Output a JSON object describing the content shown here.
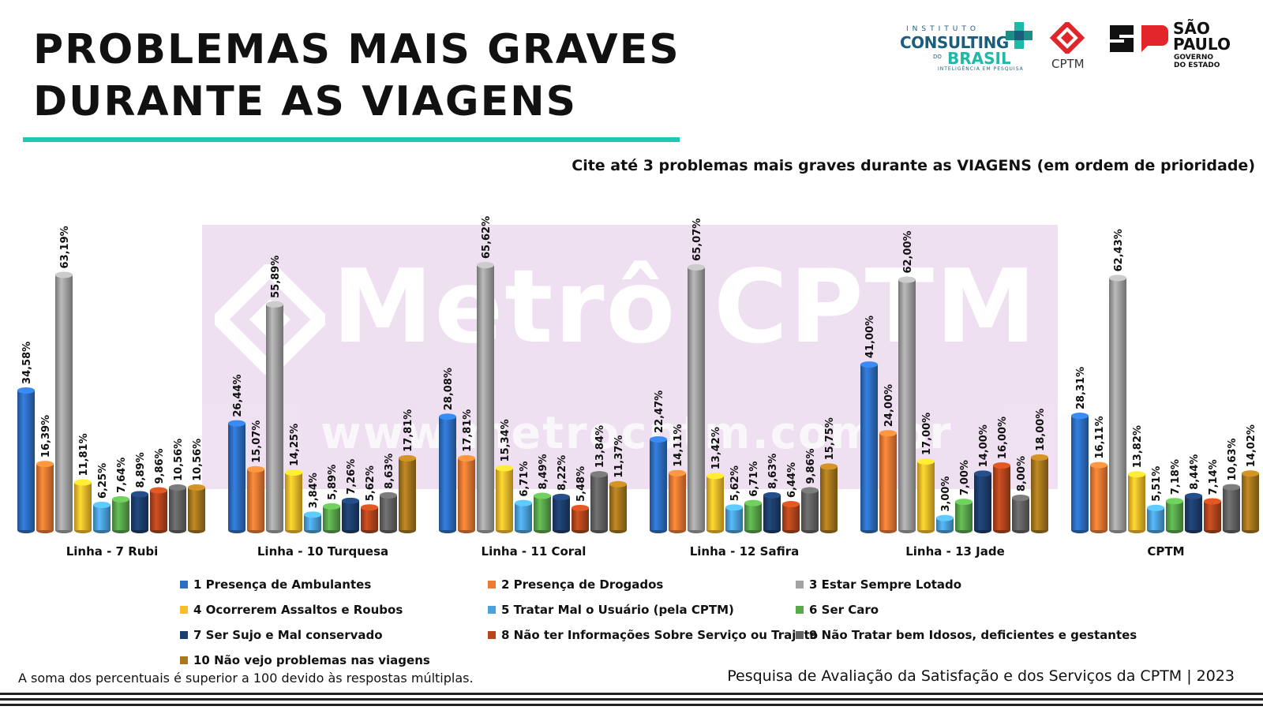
{
  "header": {
    "title_line1": "PROBLEMAS MAIS GRAVES",
    "title_line2": "DURANTE AS VIAGENS",
    "accent_color": "#1fc7b4"
  },
  "logos": {
    "icb_small": "INSTITUTO",
    "icb_big": "CONSULTING",
    "icb_do": "DO",
    "icb_mid": "BRASIL",
    "icb_tag": "INTELIGÊNCIA EM PESQUISA",
    "cptm": "CPTM",
    "sp_line1": "SÃO",
    "sp_line2": "PAULO",
    "sp_line3": "GOVERNO DO ESTADO"
  },
  "watermark": {
    "text": "Metrô CPTM",
    "url": "www.metrocptm.com.br"
  },
  "question": "Cite até 3 problemas mais graves durante as VIAGENS (em ordem de prioridade)",
  "chart_data": {
    "type": "bar",
    "categories": [
      "Linha - 7 Rubi",
      "Linha - 10 Turquesa",
      "Linha - 11 Coral",
      "Linha - 12 Safira",
      "Linha - 13 Jade",
      "CPTM"
    ],
    "ylim": [
      0,
      70
    ],
    "series": [
      {
        "name": "1 Presença de Ambulantes",
        "color": "#2e6fc4",
        "values": [
          34.58,
          26.44,
          28.08,
          22.47,
          41.0,
          28.31
        ],
        "labels": [
          "34,58%",
          "26,44%",
          "28,08%",
          "22,47%",
          "41,00%",
          "28,31%"
        ]
      },
      {
        "name": "2 Presença de Drogados",
        "color": "#ee7a33",
        "values": [
          16.39,
          15.07,
          17.81,
          14.11,
          24.0,
          16.11
        ],
        "labels": [
          "16,39%",
          "15,07%",
          "17,81%",
          "14,11%",
          "24,00%",
          "16,11%"
        ]
      },
      {
        "name": "3 Estar Sempre Lotado",
        "color": "#a3a3a3",
        "values": [
          63.19,
          55.89,
          65.62,
          65.07,
          62.0,
          62.43
        ],
        "labels": [
          "63,19%",
          "55,89%",
          "65,62%",
          "65,07%",
          "62,00%",
          "62,43%"
        ]
      },
      {
        "name": "4 Ocorrerem Assaltos e Roubos",
        "color": "#f8be2a",
        "values": [
          11.81,
          14.25,
          15.34,
          13.42,
          17.0,
          13.82
        ],
        "labels": [
          "11,81%",
          "14,25%",
          "15,34%",
          "13,42%",
          "17,00%",
          "13,82%"
        ]
      },
      {
        "name": "5 Tratar Mal o Usuário (pela CPTM)",
        "color": "#4ca3dc",
        "values": [
          6.25,
          3.84,
          6.71,
          5.62,
          3.0,
          5.51
        ],
        "labels": [
          "6,25%",
          "3,84%",
          "6,71%",
          "5,62%",
          "3,00%",
          "5,51%"
        ]
      },
      {
        "name": "6 Ser Caro",
        "color": "#5aa84c",
        "values": [
          7.64,
          5.89,
          8.49,
          6.71,
          7.0,
          7.18
        ],
        "labels": [
          "7,64%",
          "5,89%",
          "8,49%",
          "6,71%",
          "7,00%",
          "7,18%"
        ]
      },
      {
        "name": "7 Ser Sujo e Mal conservado",
        "color": "#1d3f6e",
        "values": [
          8.89,
          7.26,
          8.22,
          8.63,
          14.0,
          8.44
        ],
        "labels": [
          "8,89%",
          "7,26%",
          "8,22%",
          "8,63%",
          "14,00%",
          "8,44%"
        ]
      },
      {
        "name": "8 Não ter Informações Sobre Serviço ou Trajeto",
        "color": "#b6461d",
        "values": [
          9.86,
          5.62,
          5.48,
          6.44,
          16.0,
          7.14
        ],
        "labels": [
          "9,86%",
          "5,62%",
          "5,48%",
          "6,44%",
          "16,00%",
          "7,14%"
        ]
      },
      {
        "name": "9 Não Tratar bem Idosos, deficientes e gestantes",
        "color": "#646464",
        "values": [
          10.56,
          8.63,
          13.84,
          9.86,
          8.0,
          10.63
        ],
        "labels": [
          "10,56%",
          "8,63%",
          "13,84%",
          "9,86%",
          "8,00%",
          "10,63%"
        ]
      },
      {
        "name": "10 Não vejo problemas nas viagens",
        "color": "#a9781e",
        "values": [
          10.56,
          17.81,
          11.37,
          15.75,
          18.0,
          14.02
        ],
        "labels": [
          "10,56%",
          "17,81%",
          "11,37%",
          "15,75%",
          "18,00%",
          "14,02%"
        ]
      }
    ]
  },
  "footer": {
    "note": "A soma dos percentuais é superior a 100 devido às respostas múltiplas.",
    "source": "Pesquisa de Avaliação da Satisfação e dos Serviços da CPTM | 2023"
  }
}
